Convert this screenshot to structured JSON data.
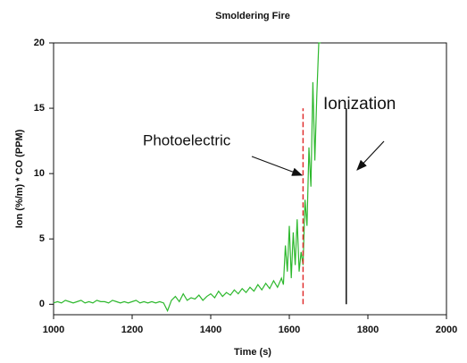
{
  "chart_data": {
    "type": "line",
    "title": "Smoldering Fire",
    "xlabel": "Time (s)",
    "ylabel": "Ion (%/m) * CO (PPM)",
    "xlim": [
      1000,
      2000
    ],
    "xticks": [
      1000,
      1200,
      1400,
      1600,
      1800,
      2000
    ],
    "ylim": [
      -0.8,
      20
    ],
    "yticks": [
      0,
      5,
      10,
      15,
      20
    ],
    "x": [
      1000,
      1010,
      1020,
      1030,
      1040,
      1050,
      1060,
      1070,
      1080,
      1090,
      1100,
      1110,
      1120,
      1130,
      1140,
      1150,
      1160,
      1170,
      1180,
      1190,
      1200,
      1210,
      1220,
      1230,
      1240,
      1250,
      1260,
      1270,
      1280,
      1290,
      1300,
      1310,
      1320,
      1330,
      1340,
      1350,
      1360,
      1370,
      1380,
      1390,
      1400,
      1410,
      1420,
      1430,
      1440,
      1450,
      1460,
      1470,
      1480,
      1490,
      1500,
      1510,
      1520,
      1530,
      1540,
      1550,
      1560,
      1570,
      1580,
      1585,
      1590,
      1595,
      1600,
      1605,
      1610,
      1615,
      1620,
      1625,
      1630,
      1635,
      1640,
      1645,
      1650,
      1655,
      1660,
      1665,
      1670,
      1675,
      1680
    ],
    "series": [
      {
        "color": "#2db82d",
        "values": [
          0.1,
          0.2,
          0.1,
          0.3,
          0.2,
          0.1,
          0.2,
          0.3,
          0.1,
          0.2,
          0.1,
          0.3,
          0.2,
          0.2,
          0.1,
          0.3,
          0.2,
          0.1,
          0.2,
          0.1,
          0.2,
          0.3,
          0.1,
          0.2,
          0.1,
          0.2,
          0.1,
          0.2,
          0.1,
          -0.5,
          0.3,
          0.6,
          0.2,
          0.8,
          0.3,
          0.5,
          0.4,
          0.7,
          0.3,
          0.6,
          0.8,
          0.5,
          1.0,
          0.6,
          0.9,
          0.7,
          1.1,
          0.8,
          1.2,
          0.9,
          1.3,
          1.0,
          1.5,
          1.1,
          1.6,
          1.2,
          1.8,
          1.3,
          2.0,
          1.5,
          4.5,
          2.5,
          6.0,
          2.0,
          5.5,
          3.0,
          6.5,
          2.5,
          4.0,
          3.0,
          8.0,
          6.0,
          12.0,
          9.0,
          17.0,
          11.0,
          16.0,
          20.0,
          20.0
        ]
      }
    ],
    "vlines": [
      {
        "x": 1635,
        "ymax": 15,
        "color": "#e03030",
        "dashed": true,
        "label": "Photoelectric"
      },
      {
        "x": 1745,
        "ymax": 15,
        "color": "#111111",
        "dashed": false,
        "label": "Ionization"
      }
    ]
  }
}
